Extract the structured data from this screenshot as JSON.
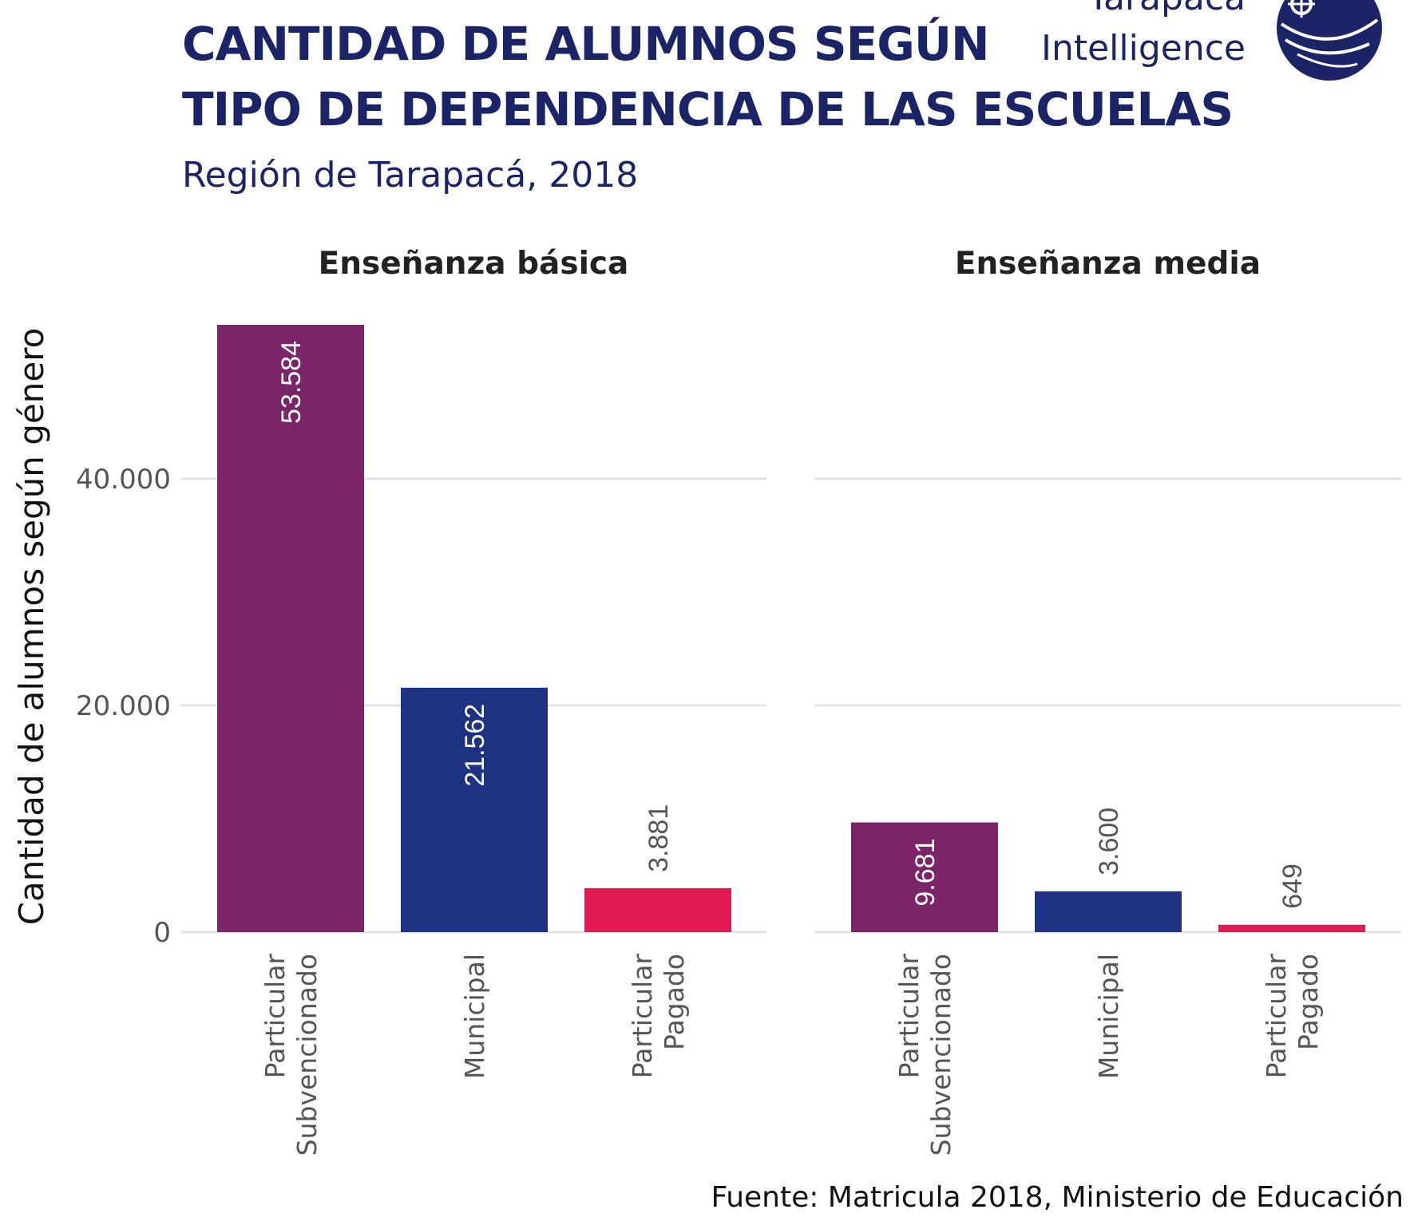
{
  "title_line1": "CANTIDAD DE ALUMNOS SEGÚN",
  "title_line2": "TIPO DE DEPENDENCIA DE LAS ESCUELAS",
  "subtitle": "Región de Tarapacá, 2018",
  "logo": {
    "line1": "Tarapacá",
    "line2": "Intelligence",
    "icon": "tarapaca-globe-logo"
  },
  "caption": "Fuente: Matricula 2018, Ministerio de Educación",
  "colors": {
    "Particular Subvencionado": "#7b2568",
    "Municipal": "#1f3282",
    "Particular Pagado": "#e01a52",
    "grid": "#e3e3e3",
    "title": "#1b2466"
  },
  "chart_data": {
    "type": "bar",
    "ylabel": "Cantidad de alumnos según género",
    "xlabel": "",
    "ylim": [
      0,
      57000
    ],
    "yticks": [
      0,
      20000,
      40000
    ],
    "ytick_labels": [
      "0",
      "20.000",
      "40.000"
    ],
    "grid": true,
    "legend": "none",
    "categories": [
      "Particular Subvencionado",
      "Municipal",
      "Particular Pagado"
    ],
    "category_label_lines": [
      [
        "Particular",
        "Subvencionado"
      ],
      [
        "Municipal"
      ],
      [
        "Particular",
        "Pagado"
      ]
    ],
    "facets": [
      {
        "name": "Enseñanza básica",
        "values": [
          53584,
          21562,
          3881
        ],
        "labels": [
          "53.584",
          "21.562",
          "3.881"
        ]
      },
      {
        "name": "Enseñanza media",
        "values": [
          9681,
          3600,
          649
        ],
        "labels": [
          "9.681",
          "3.600",
          "649"
        ]
      }
    ]
  }
}
